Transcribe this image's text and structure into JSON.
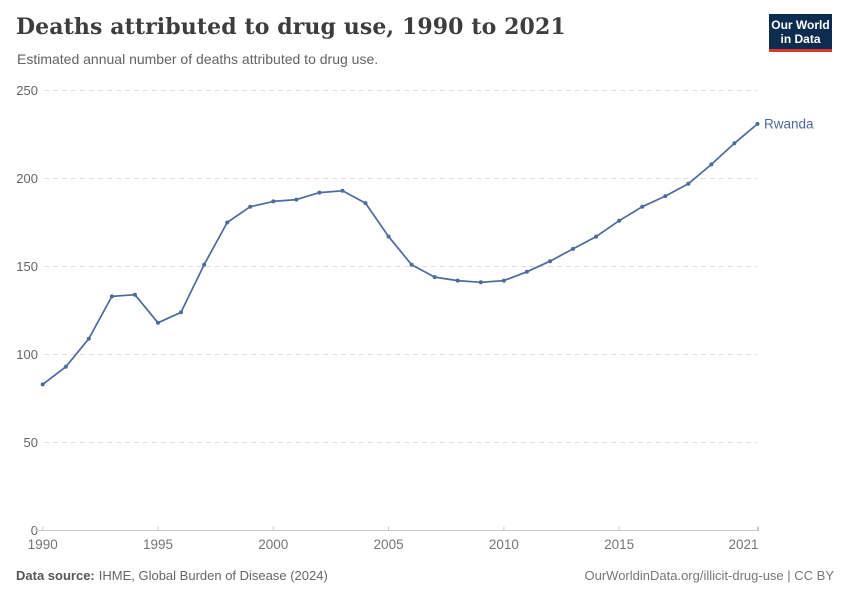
{
  "header": {
    "title": "Deaths attributed to drug use, 1990 to 2021",
    "subtitle": "Estimated annual number of deaths attributed to drug use."
  },
  "logo": {
    "line1": "Our World",
    "line2": "in Data"
  },
  "footer": {
    "source_label": "Data source:",
    "source_text": "IHME, Global Burden of Disease (2024)",
    "right_text": "OurWorldinData.org/illicit-drug-use | CC BY"
  },
  "colors": {
    "line": "#4c6a9c",
    "series_label": "#4c6a9c",
    "grid": "#dddddd",
    "axis": "#c8c8c8",
    "x_tick_label": "#757575",
    "y_tick_label": "#666666",
    "logo_navy": "#0d2d50",
    "logo_red": "#dc3831",
    "title_text": "#3d3d3d",
    "subtitle_text": "#636363"
  },
  "chart_data": {
    "type": "line",
    "title": "Deaths attributed to drug use, 1990 to 2021",
    "subtitle": "Estimated annual number of deaths attributed to drug use.",
    "xlabel": "",
    "ylabel": "",
    "xlim": [
      1990,
      2021
    ],
    "ylim": [
      0,
      250
    ],
    "xticks": [
      1990,
      1995,
      2000,
      2005,
      2010,
      2015,
      2021
    ],
    "yticks": [
      0,
      50,
      100,
      150,
      200,
      250
    ],
    "grid": "horizontal-dashed",
    "legend_position": "end-of-line-label",
    "x": [
      1990,
      1991,
      1992,
      1993,
      1994,
      1995,
      1996,
      1997,
      1998,
      1999,
      2000,
      2001,
      2002,
      2003,
      2004,
      2005,
      2006,
      2007,
      2008,
      2009,
      2010,
      2011,
      2012,
      2013,
      2014,
      2015,
      2016,
      2017,
      2018,
      2019,
      2020,
      2021
    ],
    "series": [
      {
        "name": "Rwanda",
        "color": "#4c6a9c",
        "values": [
          83,
          93,
          109,
          133,
          134,
          118,
          124,
          151,
          175,
          184,
          187,
          188,
          192,
          193,
          186,
          167,
          151,
          144,
          142,
          141,
          142,
          147,
          153,
          160,
          167,
          176,
          184,
          190,
          197,
          208,
          220,
          231
        ]
      }
    ]
  }
}
